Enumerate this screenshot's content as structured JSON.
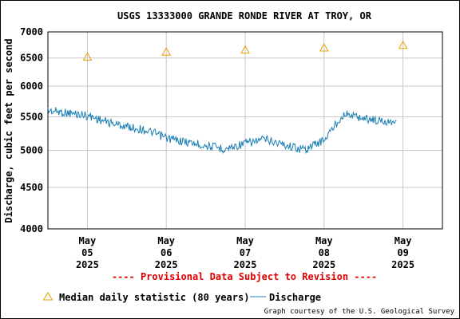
{
  "chart_data": {
    "type": "line",
    "title": "USGS 13333000 GRANDE RONDE RIVER AT TROY, OR",
    "xlabel": "",
    "ylabel": "Discharge, cubic feet per second",
    "y_scale": "log",
    "ylim": [
      4000,
      7000
    ],
    "y_ticks": [
      4000,
      4500,
      5000,
      5500,
      6000,
      6500,
      7000
    ],
    "x_range": [
      "2025-05-04 12:00",
      "2025-05-09 12:00"
    ],
    "x_ticks": [
      {
        "date": "2025-05-05",
        "lines": [
          "May",
          "05",
          "2025"
        ]
      },
      {
        "date": "2025-05-06",
        "lines": [
          "May",
          "06",
          "2025"
        ]
      },
      {
        "date": "2025-05-07",
        "lines": [
          "May",
          "07",
          "2025"
        ]
      },
      {
        "date": "2025-05-08",
        "lines": [
          "May",
          "08",
          "2025"
        ]
      },
      {
        "date": "2025-05-09",
        "lines": [
          "May",
          "09",
          "2025"
        ]
      }
    ],
    "grid": true,
    "series": [
      {
        "name": "Median daily statistic (80 years)",
        "kind": "marker",
        "color": "#e6a000",
        "points": [
          {
            "x": "2025-05-05",
            "y": 6520
          },
          {
            "x": "2025-05-06",
            "y": 6610
          },
          {
            "x": "2025-05-07",
            "y": 6650
          },
          {
            "x": "2025-05-08",
            "y": 6690
          },
          {
            "x": "2025-05-09",
            "y": 6740
          }
        ]
      },
      {
        "name": "Discharge",
        "kind": "line",
        "color": "#1a7fb4",
        "points": [
          {
            "x": "2025-05-04 12:00",
            "y": 5600
          },
          {
            "x": "2025-05-04 18:00",
            "y": 5560
          },
          {
            "x": "2025-05-05 00:00",
            "y": 5520
          },
          {
            "x": "2025-05-05 06:00",
            "y": 5420
          },
          {
            "x": "2025-05-05 12:00",
            "y": 5350
          },
          {
            "x": "2025-05-05 18:00",
            "y": 5290
          },
          {
            "x": "2025-05-06 00:00",
            "y": 5180
          },
          {
            "x": "2025-05-06 06:00",
            "y": 5120
          },
          {
            "x": "2025-05-06 12:00",
            "y": 5070
          },
          {
            "x": "2025-05-06 18:00",
            "y": 5020
          },
          {
            "x": "2025-05-07 00:00",
            "y": 5100
          },
          {
            "x": "2025-05-07 06:00",
            "y": 5160
          },
          {
            "x": "2025-05-07 12:00",
            "y": 5080
          },
          {
            "x": "2025-05-07 18:00",
            "y": 5010
          },
          {
            "x": "2025-05-08 00:00",
            "y": 5150
          },
          {
            "x": "2025-05-08 06:00",
            "y": 5550
          },
          {
            "x": "2025-05-08 12:00",
            "y": 5480
          },
          {
            "x": "2025-05-08 18:00",
            "y": 5430
          },
          {
            "x": "2025-05-08 22:00",
            "y": 5440
          }
        ]
      }
    ]
  },
  "annotation": "---- Provisional Data Subject to Revision ----",
  "legend": {
    "median_label": "Median daily statistic (80 years)",
    "discharge_label": "Discharge"
  },
  "credit": "Graph courtesy of the U.S. Geological Survey",
  "colors": {
    "median": "#e6a000",
    "discharge": "#1a7fb4",
    "provisional": "#e00000",
    "grid": "#c8c8c8"
  }
}
